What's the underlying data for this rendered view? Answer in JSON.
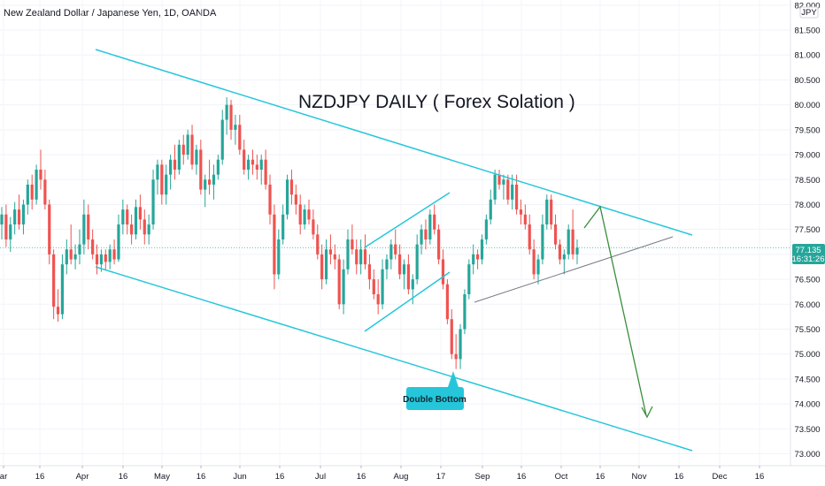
{
  "header": {
    "symbol_title": "New Zealand Dollar / Japanese Yen, 1D, OANDA"
  },
  "annotations": {
    "headline": "NZDJPY DAILY ( Forex Solation )",
    "callout": "Double Bottom"
  },
  "colors": {
    "bull": "#26a69a",
    "bear": "#ef5350",
    "channel": "#26c6da",
    "trendline": "#787b86",
    "projection": "#388e3c",
    "price_tag": "#26a69a",
    "callout_bg": "#26c6da"
  },
  "price_tag": {
    "price": "77.135",
    "countdown": "16:31:26"
  },
  "chart_data": {
    "type": "candlestick",
    "title": "NZDJPY DAILY ( Forex Solation )",
    "symbol": "New Zealand Dollar / Japanese Yen, 1D, OANDA",
    "currency_label": "JPY",
    "ylim": [
      72.85,
      82.05
    ],
    "y_ticks": [
      "82.000",
      "81.500",
      "81.000",
      "80.500",
      "80.000",
      "79.500",
      "79.000",
      "78.500",
      "78.000",
      "77.500",
      "77.000",
      "76.500",
      "76.000",
      "75.500",
      "75.000",
      "74.500",
      "74.000",
      "73.500",
      "73.000"
    ],
    "x_ticks": [
      "ar",
      "16",
      "Apr",
      "16",
      "May",
      "16",
      "Jun",
      "16",
      "Jul",
      "16",
      "Aug",
      "17",
      "Sep",
      "16",
      "Oct",
      "16",
      "Nov",
      "16",
      "Dec",
      "16"
    ],
    "last_price": 77.135,
    "candles": [
      {
        "o": 77.6,
        "h": 77.95,
        "l": 77.3,
        "c": 77.8
      },
      {
        "o": 77.8,
        "h": 78.0,
        "l": 77.15,
        "c": 77.3
      },
      {
        "o": 77.3,
        "h": 77.75,
        "l": 77.05,
        "c": 77.6
      },
      {
        "o": 77.6,
        "h": 78.05,
        "l": 77.4,
        "c": 77.9
      },
      {
        "o": 77.9,
        "h": 78.2,
        "l": 77.5,
        "c": 77.6
      },
      {
        "o": 77.6,
        "h": 78.1,
        "l": 77.4,
        "c": 78.0
      },
      {
        "o": 78.0,
        "h": 78.5,
        "l": 77.8,
        "c": 78.4
      },
      {
        "o": 78.4,
        "h": 78.6,
        "l": 77.9,
        "c": 78.1
      },
      {
        "o": 78.1,
        "h": 78.8,
        "l": 78.0,
        "c": 78.7
      },
      {
        "o": 78.7,
        "h": 79.1,
        "l": 78.3,
        "c": 78.5
      },
      {
        "o": 78.5,
        "h": 78.7,
        "l": 77.9,
        "c": 78.0
      },
      {
        "o": 78.0,
        "h": 78.1,
        "l": 76.8,
        "c": 77.0
      },
      {
        "o": 77.0,
        "h": 77.1,
        "l": 75.7,
        "c": 75.95
      },
      {
        "o": 75.95,
        "h": 76.3,
        "l": 75.65,
        "c": 75.8
      },
      {
        "o": 75.8,
        "h": 77.0,
        "l": 75.7,
        "c": 76.8
      },
      {
        "o": 76.8,
        "h": 77.3,
        "l": 76.6,
        "c": 77.1
      },
      {
        "o": 77.1,
        "h": 77.6,
        "l": 76.8,
        "c": 76.9
      },
      {
        "o": 76.9,
        "h": 77.2,
        "l": 76.7,
        "c": 77.0
      },
      {
        "o": 77.0,
        "h": 77.5,
        "l": 76.8,
        "c": 77.2
      },
      {
        "o": 77.2,
        "h": 78.1,
        "l": 77.0,
        "c": 77.8
      },
      {
        "o": 77.8,
        "h": 78.0,
        "l": 77.1,
        "c": 77.3
      },
      {
        "o": 77.3,
        "h": 77.5,
        "l": 76.9,
        "c": 77.0
      },
      {
        "o": 77.0,
        "h": 77.2,
        "l": 76.6,
        "c": 76.8
      },
      {
        "o": 76.8,
        "h": 77.1,
        "l": 76.65,
        "c": 77.0
      },
      {
        "o": 77.0,
        "h": 77.1,
        "l": 76.7,
        "c": 76.85
      },
      {
        "o": 76.85,
        "h": 77.2,
        "l": 76.7,
        "c": 77.1
      },
      {
        "o": 77.1,
        "h": 77.3,
        "l": 76.8,
        "c": 76.9
      },
      {
        "o": 76.9,
        "h": 77.8,
        "l": 76.85,
        "c": 77.6
      },
      {
        "o": 77.6,
        "h": 78.1,
        "l": 77.4,
        "c": 77.9
      },
      {
        "o": 77.9,
        "h": 78.0,
        "l": 77.4,
        "c": 77.6
      },
      {
        "o": 77.6,
        "h": 77.8,
        "l": 77.2,
        "c": 77.4
      },
      {
        "o": 77.4,
        "h": 78.1,
        "l": 77.3,
        "c": 77.95
      },
      {
        "o": 77.95,
        "h": 78.2,
        "l": 77.5,
        "c": 77.7
      },
      {
        "o": 77.7,
        "h": 77.9,
        "l": 77.2,
        "c": 77.4
      },
      {
        "o": 77.4,
        "h": 77.8,
        "l": 77.2,
        "c": 77.6
      },
      {
        "o": 77.6,
        "h": 78.7,
        "l": 77.5,
        "c": 78.5
      },
      {
        "o": 78.5,
        "h": 78.9,
        "l": 78.2,
        "c": 78.8
      },
      {
        "o": 78.8,
        "h": 78.9,
        "l": 78.0,
        "c": 78.2
      },
      {
        "o": 78.2,
        "h": 78.8,
        "l": 78.0,
        "c": 78.6
      },
      {
        "o": 78.6,
        "h": 79.0,
        "l": 78.3,
        "c": 78.9
      },
      {
        "o": 78.9,
        "h": 79.2,
        "l": 78.5,
        "c": 78.7
      },
      {
        "o": 78.7,
        "h": 79.3,
        "l": 78.6,
        "c": 79.2
      },
      {
        "o": 79.2,
        "h": 79.4,
        "l": 78.8,
        "c": 79.0
      },
      {
        "o": 79.0,
        "h": 79.5,
        "l": 78.9,
        "c": 79.4
      },
      {
        "o": 79.4,
        "h": 79.6,
        "l": 78.7,
        "c": 78.8
      },
      {
        "o": 78.8,
        "h": 79.2,
        "l": 78.6,
        "c": 79.1
      },
      {
        "o": 79.1,
        "h": 79.3,
        "l": 78.2,
        "c": 78.3
      },
      {
        "o": 78.3,
        "h": 78.6,
        "l": 77.95,
        "c": 78.5
      },
      {
        "o": 78.5,
        "h": 78.9,
        "l": 78.2,
        "c": 78.4
      },
      {
        "o": 78.4,
        "h": 78.8,
        "l": 78.1,
        "c": 78.6
      },
      {
        "o": 78.6,
        "h": 79.0,
        "l": 78.5,
        "c": 78.9
      },
      {
        "o": 78.9,
        "h": 79.9,
        "l": 78.8,
        "c": 79.7
      },
      {
        "o": 79.7,
        "h": 80.15,
        "l": 79.4,
        "c": 80.0
      },
      {
        "o": 80.0,
        "h": 80.1,
        "l": 79.3,
        "c": 79.5
      },
      {
        "o": 79.5,
        "h": 79.8,
        "l": 79.2,
        "c": 79.6
      },
      {
        "o": 79.6,
        "h": 79.8,
        "l": 79.0,
        "c": 79.1
      },
      {
        "o": 79.1,
        "h": 79.3,
        "l": 78.6,
        "c": 78.7
      },
      {
        "o": 78.7,
        "h": 79.0,
        "l": 78.5,
        "c": 78.9
      },
      {
        "o": 78.9,
        "h": 79.1,
        "l": 78.6,
        "c": 78.8
      },
      {
        "o": 78.8,
        "h": 79.0,
        "l": 78.5,
        "c": 78.7
      },
      {
        "o": 78.7,
        "h": 79.0,
        "l": 78.4,
        "c": 78.9
      },
      {
        "o": 78.9,
        "h": 79.1,
        "l": 78.3,
        "c": 78.4
      },
      {
        "o": 78.4,
        "h": 78.6,
        "l": 77.6,
        "c": 77.8
      },
      {
        "o": 77.8,
        "h": 78.0,
        "l": 76.3,
        "c": 76.6
      },
      {
        "o": 76.6,
        "h": 77.5,
        "l": 76.5,
        "c": 77.3
      },
      {
        "o": 77.3,
        "h": 78.0,
        "l": 77.2,
        "c": 77.8
      },
      {
        "o": 77.8,
        "h": 78.6,
        "l": 77.7,
        "c": 78.5
      },
      {
        "o": 78.5,
        "h": 78.7,
        "l": 78.0,
        "c": 78.2
      },
      {
        "o": 78.2,
        "h": 78.4,
        "l": 77.8,
        "c": 78.0
      },
      {
        "o": 78.0,
        "h": 78.2,
        "l": 77.4,
        "c": 77.6
      },
      {
        "o": 77.6,
        "h": 78.0,
        "l": 77.5,
        "c": 77.9
      },
      {
        "o": 77.9,
        "h": 78.1,
        "l": 77.6,
        "c": 77.7
      },
      {
        "o": 77.7,
        "h": 77.9,
        "l": 77.3,
        "c": 77.4
      },
      {
        "o": 77.4,
        "h": 77.6,
        "l": 76.9,
        "c": 77.0
      },
      {
        "o": 77.0,
        "h": 77.2,
        "l": 76.3,
        "c": 76.5
      },
      {
        "o": 76.5,
        "h": 77.3,
        "l": 76.4,
        "c": 77.1
      },
      {
        "o": 77.1,
        "h": 77.4,
        "l": 76.8,
        "c": 77.0
      },
      {
        "o": 77.0,
        "h": 77.2,
        "l": 76.7,
        "c": 76.9
      },
      {
        "o": 76.9,
        "h": 77.0,
        "l": 75.9,
        "c": 76.0
      },
      {
        "o": 76.0,
        "h": 76.9,
        "l": 75.8,
        "c": 76.7
      },
      {
        "o": 76.7,
        "h": 77.5,
        "l": 76.6,
        "c": 77.3
      },
      {
        "o": 77.3,
        "h": 77.6,
        "l": 77.0,
        "c": 77.1
      },
      {
        "o": 77.1,
        "h": 77.3,
        "l": 76.6,
        "c": 76.8
      },
      {
        "o": 76.8,
        "h": 77.3,
        "l": 76.6,
        "c": 77.1
      },
      {
        "o": 77.1,
        "h": 77.4,
        "l": 76.7,
        "c": 76.8
      },
      {
        "o": 76.8,
        "h": 77.0,
        "l": 76.3,
        "c": 76.5
      },
      {
        "o": 76.5,
        "h": 76.7,
        "l": 76.1,
        "c": 76.2
      },
      {
        "o": 76.2,
        "h": 76.5,
        "l": 75.8,
        "c": 76.0
      },
      {
        "o": 76.0,
        "h": 76.9,
        "l": 75.9,
        "c": 76.7
      },
      {
        "o": 76.7,
        "h": 77.0,
        "l": 76.5,
        "c": 76.9
      },
      {
        "o": 76.9,
        "h": 77.3,
        "l": 76.7,
        "c": 77.2
      },
      {
        "o": 77.2,
        "h": 77.5,
        "l": 76.9,
        "c": 77.0
      },
      {
        "o": 77.0,
        "h": 77.2,
        "l": 76.5,
        "c": 76.6
      },
      {
        "o": 76.6,
        "h": 76.9,
        "l": 76.3,
        "c": 76.8
      },
      {
        "o": 76.8,
        "h": 77.0,
        "l": 76.2,
        "c": 76.3
      },
      {
        "o": 76.3,
        "h": 76.6,
        "l": 76.0,
        "c": 76.5
      },
      {
        "o": 76.5,
        "h": 77.4,
        "l": 76.4,
        "c": 77.2
      },
      {
        "o": 77.2,
        "h": 77.6,
        "l": 77.0,
        "c": 77.5
      },
      {
        "o": 77.5,
        "h": 77.7,
        "l": 77.1,
        "c": 77.3
      },
      {
        "o": 77.3,
        "h": 77.9,
        "l": 77.2,
        "c": 77.8
      },
      {
        "o": 77.8,
        "h": 78.0,
        "l": 77.4,
        "c": 77.5
      },
      {
        "o": 77.5,
        "h": 77.6,
        "l": 76.8,
        "c": 76.9
      },
      {
        "o": 76.9,
        "h": 77.1,
        "l": 76.3,
        "c": 76.4
      },
      {
        "o": 76.4,
        "h": 76.5,
        "l": 75.6,
        "c": 75.7
      },
      {
        "o": 75.7,
        "h": 75.9,
        "l": 74.9,
        "c": 75.0
      },
      {
        "o": 75.0,
        "h": 75.4,
        "l": 74.7,
        "c": 74.9
      },
      {
        "o": 74.9,
        "h": 75.6,
        "l": 74.7,
        "c": 75.5
      },
      {
        "o": 75.5,
        "h": 76.3,
        "l": 75.4,
        "c": 76.2
      },
      {
        "o": 76.2,
        "h": 76.9,
        "l": 76.1,
        "c": 76.8
      },
      {
        "o": 76.8,
        "h": 77.2,
        "l": 76.6,
        "c": 77.0
      },
      {
        "o": 77.0,
        "h": 77.1,
        "l": 76.7,
        "c": 76.9
      },
      {
        "o": 76.9,
        "h": 77.4,
        "l": 76.8,
        "c": 77.3
      },
      {
        "o": 77.3,
        "h": 77.8,
        "l": 77.2,
        "c": 77.7
      },
      {
        "o": 77.7,
        "h": 78.3,
        "l": 77.6,
        "c": 78.1
      },
      {
        "o": 78.1,
        "h": 78.7,
        "l": 78.0,
        "c": 78.6
      },
      {
        "o": 78.6,
        "h": 78.7,
        "l": 78.3,
        "c": 78.4
      },
      {
        "o": 78.4,
        "h": 78.6,
        "l": 78.1,
        "c": 78.5
      },
      {
        "o": 78.5,
        "h": 78.6,
        "l": 78.0,
        "c": 78.1
      },
      {
        "o": 78.1,
        "h": 78.6,
        "l": 77.9,
        "c": 78.4
      },
      {
        "o": 78.4,
        "h": 78.6,
        "l": 77.8,
        "c": 77.9
      },
      {
        "o": 77.9,
        "h": 78.1,
        "l": 77.6,
        "c": 77.8
      },
      {
        "o": 77.8,
        "h": 78.0,
        "l": 77.5,
        "c": 77.6
      },
      {
        "o": 77.6,
        "h": 77.8,
        "l": 77.0,
        "c": 77.1
      },
      {
        "o": 77.1,
        "h": 77.3,
        "l": 76.5,
        "c": 76.6
      },
      {
        "o": 76.6,
        "h": 77.0,
        "l": 76.4,
        "c": 76.9
      },
      {
        "o": 76.9,
        "h": 77.8,
        "l": 76.8,
        "c": 77.6
      },
      {
        "o": 77.6,
        "h": 78.2,
        "l": 77.5,
        "c": 78.1
      },
      {
        "o": 78.1,
        "h": 78.2,
        "l": 77.5,
        "c": 77.6
      },
      {
        "o": 77.6,
        "h": 77.8,
        "l": 77.1,
        "c": 77.2
      },
      {
        "o": 77.2,
        "h": 77.3,
        "l": 76.8,
        "c": 76.9
      },
      {
        "o": 76.9,
        "h": 77.1,
        "l": 76.6,
        "c": 77.0
      },
      {
        "o": 77.0,
        "h": 77.6,
        "l": 76.9,
        "c": 77.5
      },
      {
        "o": 77.5,
        "h": 77.9,
        "l": 76.9,
        "c": 77.0
      },
      {
        "o": 77.0,
        "h": 77.3,
        "l": 76.8,
        "c": 77.135
      }
    ]
  }
}
